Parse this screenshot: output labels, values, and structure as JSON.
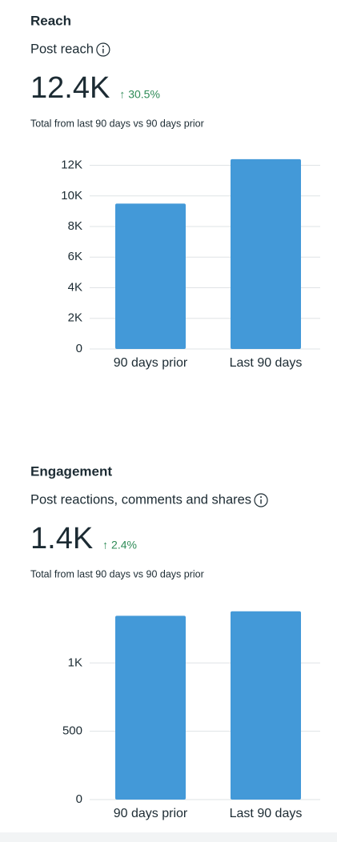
{
  "chart_data": [
    {
      "type": "bar",
      "heading": "Reach",
      "title": "Post reach",
      "metric": "12.4K",
      "change": "↑ 30.5%",
      "subtitle": "Total from last 90 days vs 90 days prior",
      "categories": [
        "90 days prior",
        "Last 90 days"
      ],
      "values": [
        9500,
        12400
      ],
      "color": "#4399d8",
      "ylim": [
        0,
        12500
      ],
      "yticks": [
        0,
        {
          "value": 2000,
          "label": "2K"
        },
        {
          "value": 4000,
          "label": "4K"
        },
        {
          "value": 6000,
          "label": "6K"
        },
        {
          "value": 8000,
          "label": "8K"
        },
        {
          "value": 10000,
          "label": "10K"
        },
        {
          "value": 12000,
          "label": "12K"
        }
      ],
      "grid": true
    },
    {
      "type": "bar",
      "heading": "Engagement",
      "title": "Post reactions, comments and shares",
      "metric": "1.4K",
      "change": "↑ 2.4%",
      "subtitle": "Total from last 90 days vs 90 days prior",
      "categories": [
        "90 days prior",
        "Last 90 days"
      ],
      "values": [
        1345,
        1378
      ],
      "color": "#4399d8",
      "ylim": [
        0,
        1400
      ],
      "yticks": [
        0,
        500,
        {
          "value": 1000,
          "label": "1K"
        }
      ],
      "grid": true
    }
  ]
}
